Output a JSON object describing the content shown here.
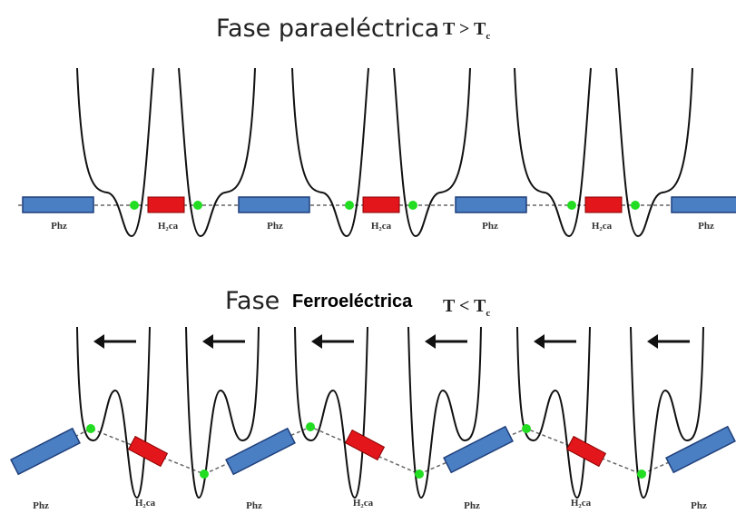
{
  "top": {
    "title": "Fase paraeléctrica",
    "condition": {
      "text": "T > T",
      "subscript": "c"
    },
    "labels": [
      "Phz",
      "H₂ca",
      "Phz",
      "H₂ca",
      "Phz",
      "H₂ca",
      "Phz"
    ]
  },
  "bottom": {
    "title": {
      "word": "Fase",
      "highlight": "Ferroeléctrica"
    },
    "condition": {
      "text": "T < T",
      "subscript": "c"
    },
    "labels": [
      "Phz",
      "H₂ca",
      "Phz",
      "H₂ca",
      "Phz",
      "H₂ca",
      "Phz"
    ]
  }
}
